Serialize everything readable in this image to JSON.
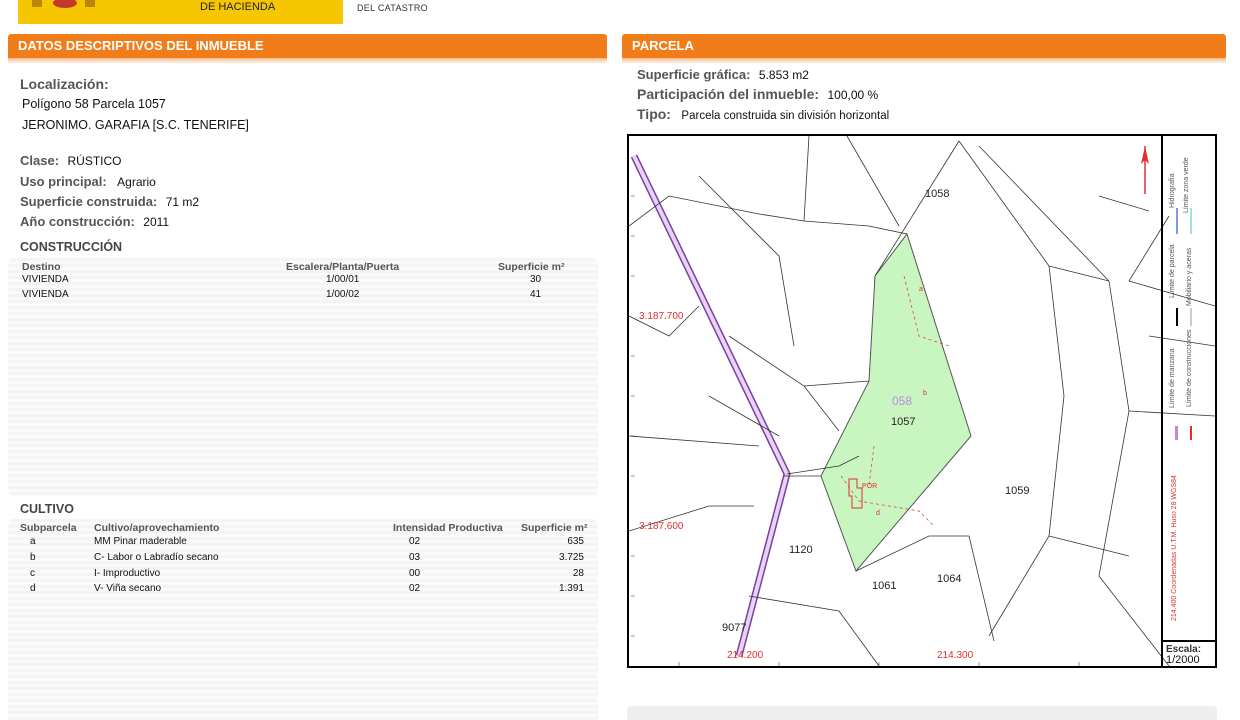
{
  "header": {
    "ministry": "DE HACIENDA",
    "catastro": "DEL CATASTRO"
  },
  "left": {
    "title": "DATOS DESCRIPTIVOS DEL INMUEBLE",
    "localizacion_label": "Localización:",
    "localizacion_line1": "Polígono 58 Parcela 1057",
    "localizacion_line2": "JERONIMO. GARAFIA [S.C. TENERIFE]",
    "clase_label": "Clase:",
    "clase_value": "RÚSTICO",
    "uso_label": "Uso principal:",
    "uso_value": "Agrario",
    "superficie_label": "Superficie construida:",
    "superficie_value": "71 m2",
    "anio_label": "Año construcción:",
    "anio_value": "2011",
    "construccion": {
      "title": "CONSTRUCCIÓN",
      "headers": [
        "Destino",
        "Escalera/Planta/Puerta",
        "Superficie m²"
      ],
      "rows": [
        [
          "VIVIENDA",
          "1/00/01",
          "30"
        ],
        [
          "VIVIENDA",
          "1/00/02",
          "41"
        ]
      ]
    },
    "cultivo": {
      "title": "CULTIVO",
      "headers": [
        "Subparcela",
        "Cultivo/aprovechamiento",
        "Intensidad Productiva",
        "Superficie m²"
      ],
      "rows": [
        [
          "a",
          "MM Pinar maderable",
          "02",
          "635"
        ],
        [
          "b",
          "C- Labor o Labradío secano",
          "03",
          "3.725"
        ],
        [
          "c",
          "I- Improductivo",
          "00",
          "28"
        ],
        [
          "d",
          "V- Viña secano",
          "02",
          "1.391"
        ]
      ]
    }
  },
  "right": {
    "title": "PARCELA",
    "sup_grafica_label": "Superficie gráfica:",
    "sup_grafica_value": "5.853 m2",
    "participacion_label": "Participación del inmueble:",
    "participacion_value": "100,00 %",
    "tipo_label": "Tipo:",
    "tipo_value": "Parcela construida sin división horizontal"
  },
  "map": {
    "parcel_labels": [
      "1058",
      "1057",
      "1059",
      "1120",
      "1061",
      "1064",
      "9077"
    ],
    "poligono": "058",
    "subparcels": [
      "a",
      "b",
      "d",
      "POR"
    ],
    "coords_y": [
      "3.187.700",
      "3.187.600"
    ],
    "coords_x": [
      "214.200",
      "214.300"
    ],
    "legend": [
      "Hidrografía",
      "Límite zona verde",
      "Límite de parcela",
      "Mobiliario y aceras",
      "Límite de manzana",
      "Límite de construcciones"
    ],
    "coord_system": "214.400 Coordenadas U.T.M. Huso 28 WGS84",
    "escala_label": "Escala:",
    "escala_value": "1/2000",
    "colors": {
      "parcel_fill": "#c9f5c0",
      "road": "#c79be6",
      "coord_text": "#e03030"
    }
  }
}
